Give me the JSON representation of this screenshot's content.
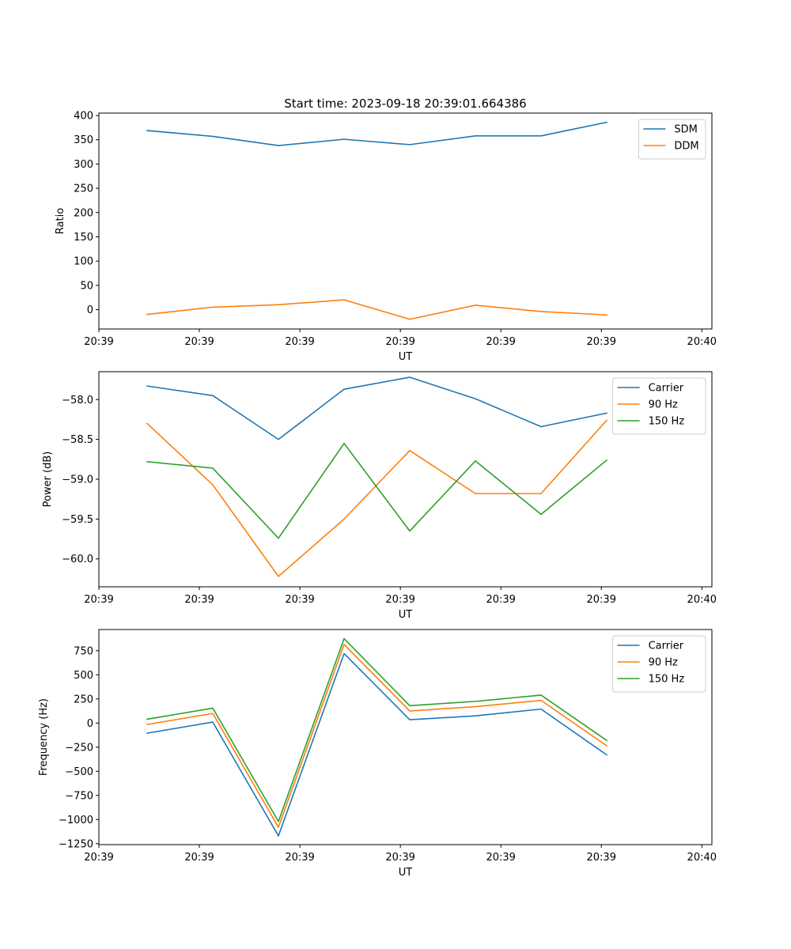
{
  "title": "Start time: 2023-09-18 20:39:01.664386",
  "chart_data": [
    {
      "type": "line",
      "ylabel": "Ratio",
      "xlabel": "UT",
      "xlim": [
        0,
        9.15
      ],
      "x": [
        0.72,
        1.7,
        2.68,
        3.66,
        4.64,
        5.62,
        6.6,
        7.58
      ],
      "xticks": [
        {
          "value": 0.0,
          "label": "20:39"
        },
        {
          "value": 1.5,
          "label": "20:39"
        },
        {
          "value": 3.0,
          "label": "20:39"
        },
        {
          "value": 4.5,
          "label": "20:39"
        },
        {
          "value": 6.0,
          "label": "20:39"
        },
        {
          "value": 7.5,
          "label": "20:39"
        },
        {
          "value": 9.0,
          "label": "20:40"
        }
      ],
      "ylim": [
        -40,
        405
      ],
      "yticks": [
        0,
        50,
        100,
        150,
        200,
        250,
        300,
        350,
        400
      ],
      "ytick_labels": [
        "0",
        "50",
        "100",
        "150",
        "200",
        "250",
        "300",
        "350",
        "400"
      ],
      "legend_position": "top-right",
      "series": [
        {
          "name": "SDM",
          "color": "#1f77b4",
          "values": [
            369,
            357,
            338,
            351,
            340,
            358,
            358,
            386
          ]
        },
        {
          "name": "DDM",
          "color": "#ff7f0e",
          "values": [
            -10,
            5,
            10,
            20,
            -20,
            9,
            -4,
            -11
          ]
        }
      ]
    },
    {
      "type": "line",
      "ylabel": "Power (dB)",
      "xlabel": "UT",
      "xlim": [
        0,
        9.15
      ],
      "x": [
        0.72,
        1.7,
        2.68,
        3.66,
        4.64,
        5.62,
        6.6,
        7.58
      ],
      "xticks": [
        {
          "value": 0.0,
          "label": "20:39"
        },
        {
          "value": 1.5,
          "label": "20:39"
        },
        {
          "value": 3.0,
          "label": "20:39"
        },
        {
          "value": 4.5,
          "label": "20:39"
        },
        {
          "value": 6.0,
          "label": "20:39"
        },
        {
          "value": 7.5,
          "label": "20:39"
        },
        {
          "value": 9.0,
          "label": "20:40"
        }
      ],
      "ylim": [
        -60.35,
        -57.65
      ],
      "yticks": [
        -60.0,
        -59.5,
        -59.0,
        -58.5,
        -58.0
      ],
      "ytick_labels": [
        "−60.0",
        "−59.5",
        "−59.0",
        "−58.5",
        "−58.0"
      ],
      "legend_position": "top-right",
      "series": [
        {
          "name": "Carrier",
          "color": "#1f77b4",
          "values": [
            -57.83,
            -57.95,
            -58.5,
            -57.87,
            -57.72,
            -57.99,
            -58.34,
            -58.17
          ]
        },
        {
          "name": "90 Hz",
          "color": "#ff7f0e",
          "values": [
            -58.3,
            -59.07,
            -60.22,
            -59.5,
            -58.64,
            -59.18,
            -59.18,
            -58.26
          ]
        },
        {
          "name": "150 Hz",
          "color": "#2ca02c",
          "values": [
            -58.78,
            -58.86,
            -59.74,
            -58.55,
            -59.65,
            -58.77,
            -59.44,
            -58.76
          ]
        }
      ]
    },
    {
      "type": "line",
      "ylabel": "Frequency (Hz)",
      "xlabel": "UT",
      "xlim": [
        0,
        9.15
      ],
      "x": [
        0.72,
        1.7,
        2.68,
        3.66,
        4.64,
        5.62,
        6.6,
        7.58
      ],
      "xticks": [
        {
          "value": 0.0,
          "label": "20:39"
        },
        {
          "value": 1.5,
          "label": "20:39"
        },
        {
          "value": 3.0,
          "label": "20:39"
        },
        {
          "value": 4.5,
          "label": "20:39"
        },
        {
          "value": 6.0,
          "label": "20:39"
        },
        {
          "value": 7.5,
          "label": "20:39"
        },
        {
          "value": 9.0,
          "label": "20:40"
        }
      ],
      "ylim": [
        -1260,
        970
      ],
      "yticks": [
        -1250,
        -1000,
        -750,
        -500,
        -250,
        0,
        250,
        500,
        750
      ],
      "ytick_labels": [
        "−1250",
        "−1000",
        "−750",
        "−500",
        "−250",
        "0",
        "250",
        "500",
        "750"
      ],
      "legend_position": "top-right",
      "series": [
        {
          "name": "Carrier",
          "color": "#1f77b4",
          "values": [
            -105,
            10,
            -1170,
            720,
            35,
            75,
            145,
            -330
          ]
        },
        {
          "name": "90 Hz",
          "color": "#ff7f0e",
          "values": [
            -15,
            100,
            -1080,
            815,
            125,
            170,
            235,
            -235
          ]
        },
        {
          "name": "150 Hz",
          "color": "#2ca02c",
          "values": [
            40,
            155,
            -1020,
            875,
            180,
            225,
            290,
            -180
          ]
        }
      ]
    }
  ]
}
